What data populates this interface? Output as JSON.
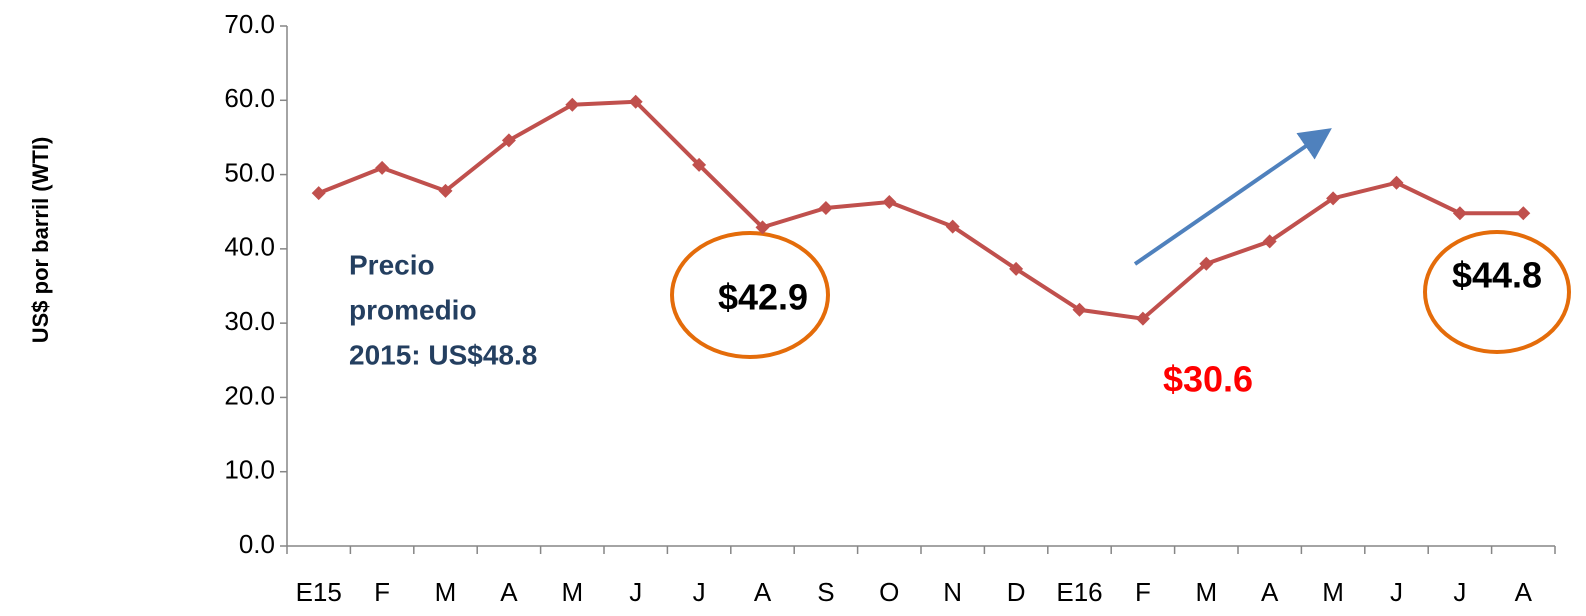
{
  "chart_data": {
    "type": "line",
    "y_label": "US$ por barril (WTI)",
    "categories": [
      "E15",
      "F",
      "M",
      "A",
      "M",
      "J",
      "J",
      "A",
      "S",
      "O",
      "N",
      "D",
      "E16",
      "F",
      "M",
      "A",
      "M",
      "J",
      "J",
      "A"
    ],
    "series": [
      {
        "name": "WTI",
        "color": "#c0504d",
        "values": [
          47.5,
          50.9,
          47.8,
          54.6,
          59.4,
          59.8,
          51.3,
          42.9,
          45.5,
          46.3,
          43.0,
          37.3,
          31.8,
          30.6,
          38.0,
          41.0,
          46.8,
          48.9,
          44.8,
          44.8
        ]
      }
    ],
    "ylim": [
      0,
      70
    ],
    "yticks": [
      {
        "value": 0,
        "label": "0.0"
      },
      {
        "value": 10,
        "label": "10.0"
      },
      {
        "value": 20,
        "label": "20.0"
      },
      {
        "value": 30,
        "label": "30.0"
      },
      {
        "value": 40,
        "label": "40.0"
      },
      {
        "value": 50,
        "label": "50.0"
      },
      {
        "value": 60,
        "label": "60.0"
      },
      {
        "value": 70,
        "label": "70.0"
      }
    ],
    "grid": false,
    "annotations": [
      "Precio",
      "promedio",
      "2015:  US$48.8",
      "$42.9",
      "$30.6",
      "$44.8"
    ]
  }
}
